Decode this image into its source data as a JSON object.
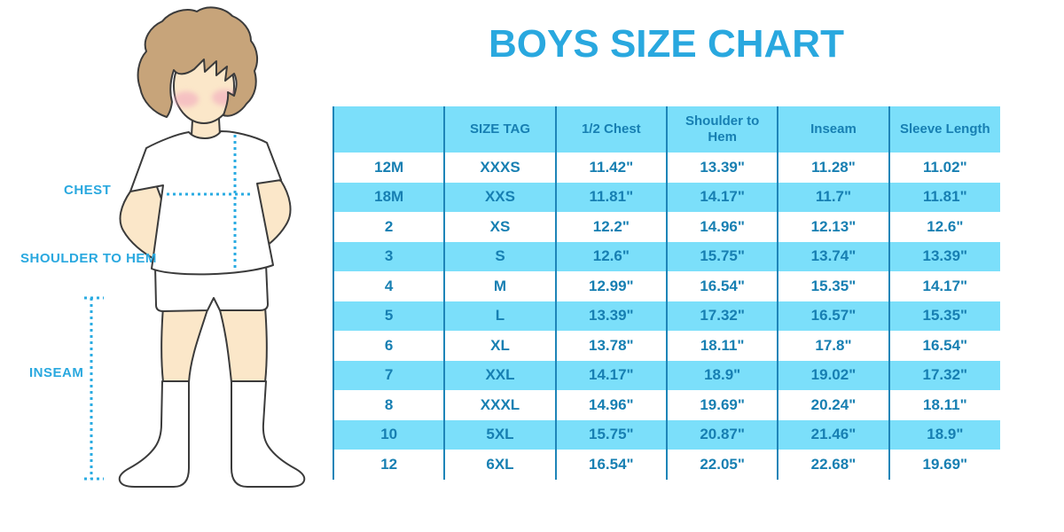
{
  "title": "BOYS SIZE CHART",
  "diagram": {
    "labels": {
      "chest": "CHEST",
      "shoulder_to_hem": "SHOULDER TO HEM",
      "inseam": "INSEAM"
    },
    "icons": [
      "chest-dotted-line",
      "shoulder-to-hem-dotted-line",
      "inseam-dimension-line",
      "boy-illustration"
    ]
  },
  "table": {
    "columns": [
      "",
      "SIZE TAG",
      "1/2 Chest",
      "Shoulder to Hem",
      "Inseam",
      "Sleeve Length"
    ],
    "rows": [
      [
        "12M",
        "XXXS",
        "11.42\"",
        "13.39\"",
        "11.28\"",
        "11.02\""
      ],
      [
        "18M",
        "XXS",
        "11.81\"",
        "14.17\"",
        "11.7\"",
        "11.81\""
      ],
      [
        "2",
        "XS",
        "12.2\"",
        "14.96\"",
        "12.13\"",
        "12.6\""
      ],
      [
        "3",
        "S",
        "12.6\"",
        "15.75\"",
        "13.74\"",
        "13.39\""
      ],
      [
        "4",
        "M",
        "12.99\"",
        "16.54\"",
        "15.35\"",
        "14.17\""
      ],
      [
        "5",
        "L",
        "13.39\"",
        "17.32\"",
        "16.57\"",
        "15.35\""
      ],
      [
        "6",
        "XL",
        "13.78\"",
        "18.11\"",
        "17.8\"",
        "16.54\""
      ],
      [
        "7",
        "XXL",
        "14.17\"",
        "18.9\"",
        "19.02\"",
        "17.32\""
      ],
      [
        "8",
        "XXXL",
        "14.96\"",
        "19.69\"",
        "20.24\"",
        "18.11\""
      ],
      [
        "10",
        "5XL",
        "15.75\"",
        "20.87\"",
        "21.46\"",
        "18.9\""
      ],
      [
        "12",
        "6XL",
        "16.54\"",
        "22.05\"",
        "22.68\"",
        "19.69\""
      ]
    ]
  },
  "colors": {
    "title_blue": "#29A8DF",
    "row_band_blue": "#7BDFFA",
    "cell_text_blue": "#177FB2",
    "grid_line_blue": "#1E85B8",
    "dotted_line_blue": "#29ABE2",
    "skin": "#FBE7C9",
    "hair": "#C7A47A",
    "cheek_pink": "#F2A9BE",
    "outline": "#3B3B3B",
    "background": "#FFFFFF"
  }
}
